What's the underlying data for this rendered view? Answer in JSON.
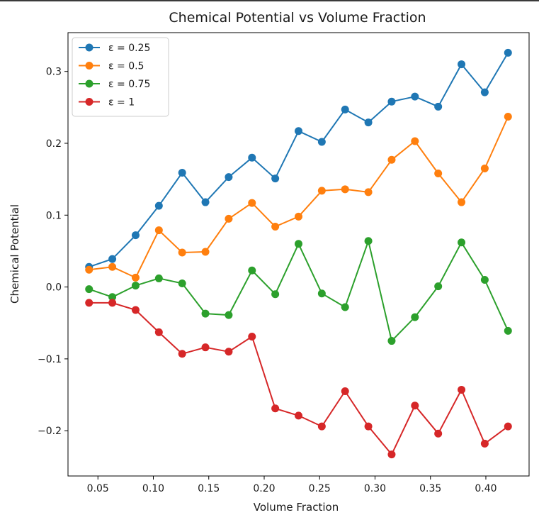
{
  "chart_data": {
    "type": "line",
    "title": "Chemical Potential vs Volume Fraction",
    "xlabel": "Volume Fraction",
    "ylabel": "Chemical Potential",
    "xlim": [
      0.023,
      0.439
    ],
    "ylim": [
      -0.263,
      0.354
    ],
    "xticks": [
      0.05,
      0.1,
      0.15,
      0.2,
      0.25,
      0.3,
      0.35,
      0.4
    ],
    "xtick_labels": [
      "0.05",
      "0.10",
      "0.15",
      "0.20",
      "0.25",
      "0.30",
      "0.35",
      "0.40"
    ],
    "yticks": [
      -0.2,
      -0.1,
      0.0,
      0.1,
      0.2,
      0.3
    ],
    "ytick_labels": [
      "−0.2",
      "−0.1",
      "0.0",
      "0.1",
      "0.2",
      "0.3"
    ],
    "grid": false,
    "legend_position": "upper left",
    "x": [
      0.042,
      0.063,
      0.084,
      0.105,
      0.126,
      0.147,
      0.168,
      0.189,
      0.21,
      0.231,
      0.252,
      0.273,
      0.294,
      0.315,
      0.336,
      0.357,
      0.378,
      0.399,
      0.42
    ],
    "series": [
      {
        "name": "ε = 0.25",
        "color": "#1f77b4",
        "values": [
          0.028,
          0.039,
          0.072,
          0.113,
          0.159,
          0.118,
          0.153,
          0.18,
          0.151,
          0.217,
          0.202,
          0.247,
          0.229,
          0.258,
          0.265,
          0.251,
          0.31,
          0.271,
          0.326
        ]
      },
      {
        "name": "ε = 0.5",
        "color": "#ff7f0e",
        "values": [
          0.024,
          0.028,
          0.013,
          0.079,
          0.048,
          0.049,
          0.095,
          0.117,
          0.084,
          0.098,
          0.134,
          0.136,
          0.132,
          0.177,
          0.203,
          0.158,
          0.118,
          0.165,
          0.237
        ]
      },
      {
        "name": "ε = 0.75",
        "color": "#2ca02c",
        "values": [
          -0.003,
          -0.014,
          0.002,
          0.012,
          0.005,
          -0.037,
          -0.039,
          0.023,
          -0.01,
          0.06,
          -0.009,
          -0.028,
          0.064,
          -0.075,
          -0.042,
          0.001,
          0.062,
          0.01,
          -0.061
        ]
      },
      {
        "name": "ε = 1",
        "color": "#d62728",
        "values": [
          -0.022,
          -0.022,
          -0.032,
          -0.063,
          -0.093,
          -0.084,
          -0.09,
          -0.069,
          -0.169,
          -0.179,
          -0.194,
          -0.145,
          -0.194,
          -0.233,
          -0.165,
          -0.204,
          -0.143,
          -0.218,
          -0.194
        ]
      }
    ]
  }
}
